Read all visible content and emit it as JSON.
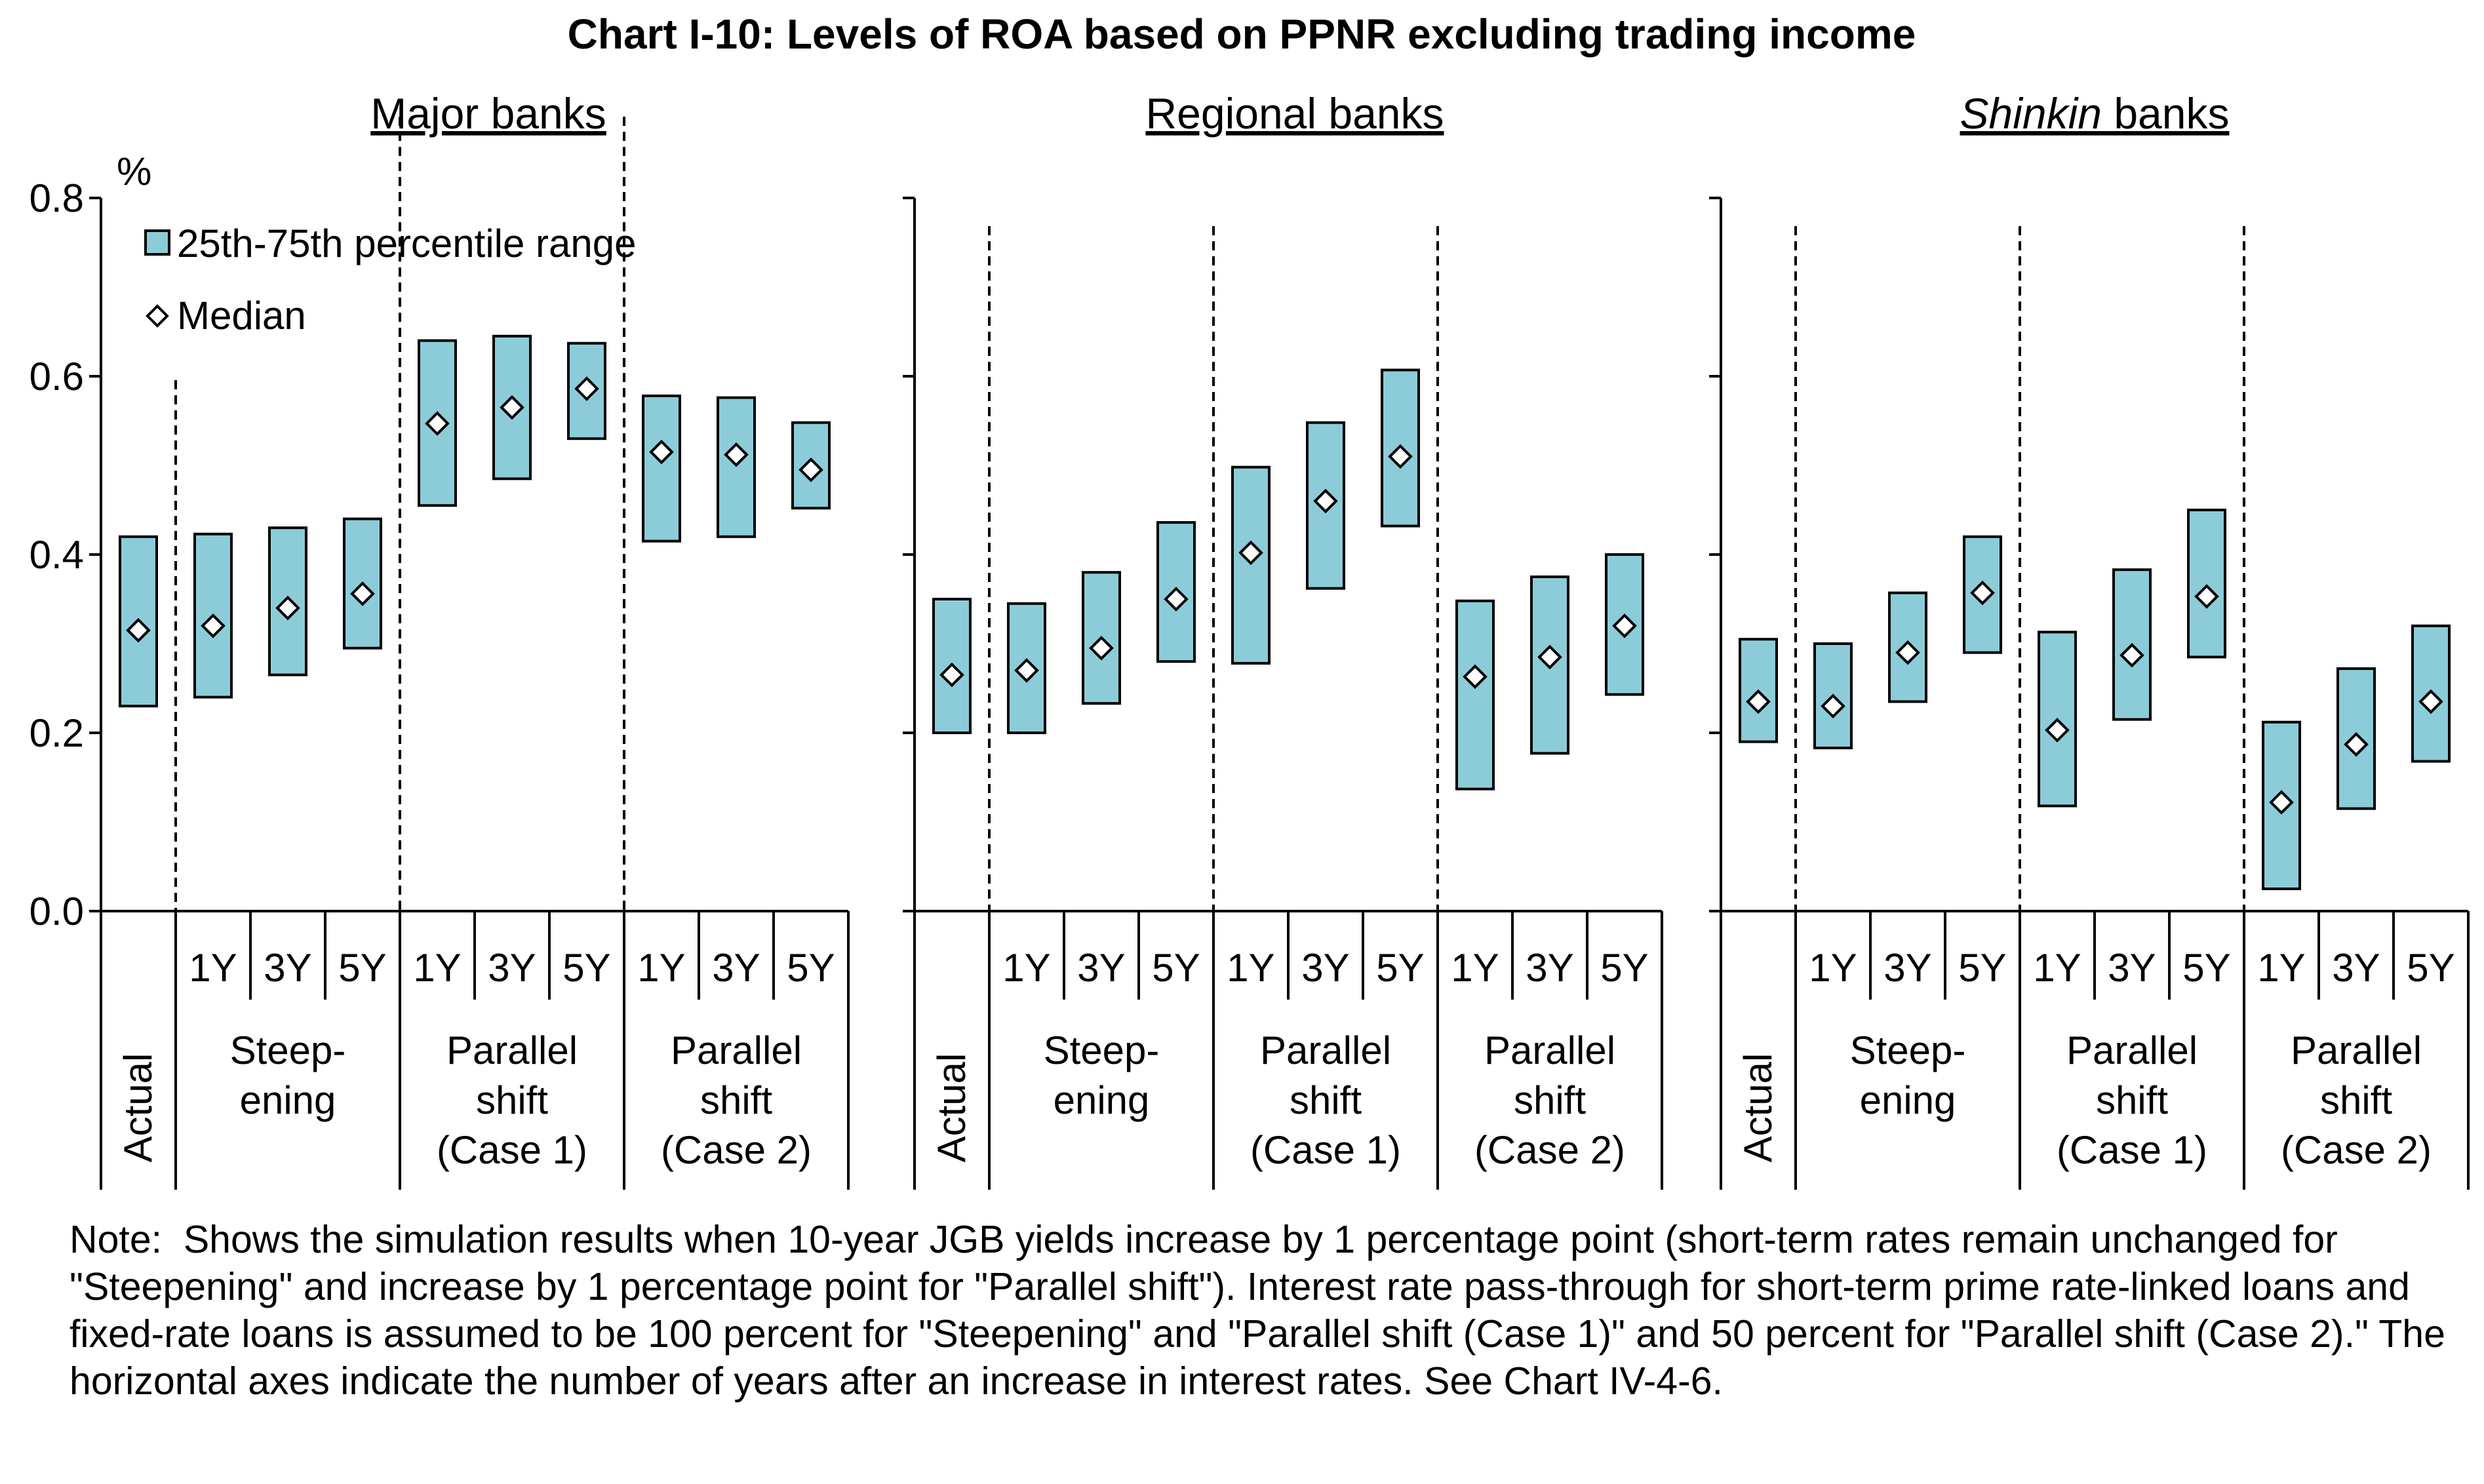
{
  "colors": {
    "box_fill": "#8cccd9",
    "box_stroke": "#000000",
    "median_fill": "#ffffff"
  },
  "chart_data": {
    "type": "range-box",
    "title": "Chart I-10: Levels of ROA based on PPNR excluding trading income",
    "unit": "%",
    "ylim": [
      0.0,
      0.8
    ],
    "yticks": [
      "0.0",
      "0.2",
      "0.4",
      "0.6",
      "0.8"
    ],
    "legend": {
      "range": "25th-75th percentile range",
      "median": "Median"
    },
    "groups": [
      {
        "label": "Actual",
        "rotated": true,
        "sub": [
          ""
        ]
      },
      {
        "label": "Steep-\nening",
        "sub": [
          "1Y",
          "3Y",
          "5Y"
        ]
      },
      {
        "label": "Parallel\nshift\n(Case 1)",
        "sub": [
          "1Y",
          "3Y",
          "5Y"
        ]
      },
      {
        "label": "Parallel\nshift\n(Case 2)",
        "sub": [
          "1Y",
          "3Y",
          "5Y"
        ]
      }
    ],
    "panels": [
      {
        "title": "Major banks",
        "q25": [
          0.23,
          0.24,
          0.265,
          0.295,
          0.455,
          0.485,
          0.53,
          0.415,
          0.42,
          0.452
        ],
        "q75": [
          0.42,
          0.423,
          0.43,
          0.44,
          0.64,
          0.645,
          0.637,
          0.578,
          0.576,
          0.548
        ],
        "median": [
          0.315,
          0.32,
          0.34,
          0.356,
          0.547,
          0.565,
          0.586,
          0.515,
          0.512,
          0.495
        ]
      },
      {
        "title": "Regional banks",
        "q25": [
          0.2,
          0.2,
          0.233,
          0.28,
          0.278,
          0.362,
          0.432,
          0.137,
          0.177,
          0.243
        ],
        "q75": [
          0.35,
          0.345,
          0.38,
          0.436,
          0.498,
          0.548,
          0.607,
          0.348,
          0.375,
          0.4
        ],
        "median": [
          0.265,
          0.27,
          0.295,
          0.35,
          0.402,
          0.46,
          0.51,
          0.263,
          0.285,
          0.32
        ]
      },
      {
        "title_italic": "Shinkin",
        "title_rest": " banks",
        "q25": [
          0.19,
          0.183,
          0.235,
          0.29,
          0.118,
          0.215,
          0.285,
          0.025,
          0.115,
          0.168
        ],
        "q75": [
          0.305,
          0.3,
          0.357,
          0.42,
          0.313,
          0.383,
          0.45,
          0.212,
          0.272,
          0.32
        ],
        "median": [
          0.235,
          0.23,
          0.29,
          0.357,
          0.203,
          0.287,
          0.353,
          0.122,
          0.187,
          0.235
        ]
      }
    ]
  },
  "note": {
    "prefix": "Note:",
    "text": "Shows the simulation results when 10-year JGB yields increase by 1 percentage point (short-term rates remain unchanged for \"Steepening\" and increase by 1 percentage point for \"Parallel shift\"). Interest rate pass-through for short-term prime rate-linked loans and fixed-rate loans is assumed to be 100 percent for \"Steepening\" and \"Parallel shift (Case 1)\" and 50 percent for \"Parallel shift (Case 2).\" The horizontal axes indicate the number of years after an increase in interest rates. See Chart IV-4-6."
  }
}
